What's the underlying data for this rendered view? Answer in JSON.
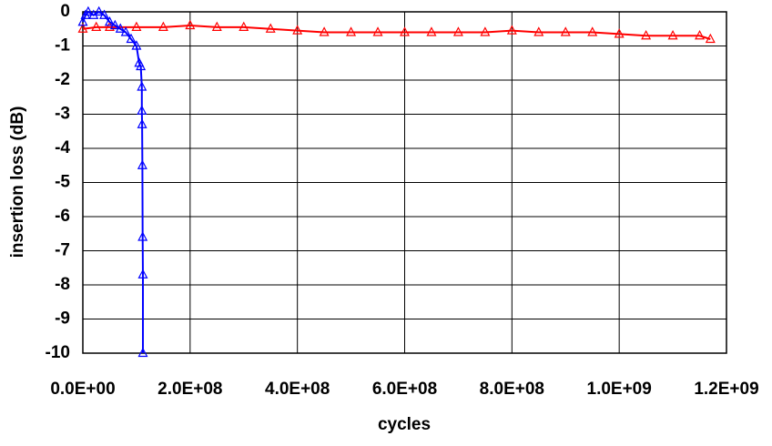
{
  "chart_data": {
    "type": "line",
    "xlabel": "cycles",
    "ylabel": "insertion loss (dB)",
    "xlim": [
      0,
      1200000000
    ],
    "ylim": [
      -10,
      0
    ],
    "xticks": [
      {
        "value": 0,
        "label": "0.0E+00"
      },
      {
        "value": 200000000,
        "label": "2.0E+08"
      },
      {
        "value": 400000000,
        "label": "4.0E+08"
      },
      {
        "value": 600000000,
        "label": "6.0E+08"
      },
      {
        "value": 800000000,
        "label": "8.0E+08"
      },
      {
        "value": 1000000000,
        "label": "1.0E+09"
      },
      {
        "value": 1200000000,
        "label": "1.2E+09"
      }
    ],
    "yticks": [
      0,
      -1,
      -2,
      -3,
      -4,
      -5,
      -6,
      -7,
      -8,
      -9,
      -10
    ],
    "grid": true,
    "series": [
      {
        "color": "#ff0000",
        "x": [
          0,
          25000000,
          50000000,
          100000000,
          150000000,
          200000000,
          250000000,
          300000000,
          350000000,
          400000000,
          450000000,
          500000000,
          550000000,
          600000000,
          650000000,
          700000000,
          750000000,
          800000000,
          850000000,
          900000000,
          950000000,
          1000000000,
          1050000000,
          1100000000,
          1150000000,
          1170000000
        ],
        "values": [
          -0.5,
          -0.45,
          -0.45,
          -0.45,
          -0.45,
          -0.4,
          -0.45,
          -0.45,
          -0.5,
          -0.55,
          -0.6,
          -0.6,
          -0.6,
          -0.6,
          -0.6,
          -0.6,
          -0.6,
          -0.55,
          -0.6,
          -0.6,
          -0.6,
          -0.65,
          -0.7,
          -0.7,
          -0.7,
          -0.8
        ]
      },
      {
        "color": "#0000ff",
        "x": [
          0,
          5000000,
          10000000,
          20000000,
          30000000,
          40000000,
          50000000,
          60000000,
          70000000,
          80000000,
          90000000,
          100000000,
          105000000,
          108000000,
          110000000,
          110000000,
          110500000,
          111000000,
          111500000,
          112000000,
          112000000
        ],
        "values": [
          -0.3,
          -0.1,
          0,
          -0.1,
          0,
          -0.1,
          -0.3,
          -0.4,
          -0.5,
          -0.6,
          -0.8,
          -1.0,
          -1.5,
          -1.6,
          -2.2,
          -2.9,
          -3.3,
          -4.5,
          -6.6,
          -7.7,
          -10
        ]
      }
    ]
  }
}
